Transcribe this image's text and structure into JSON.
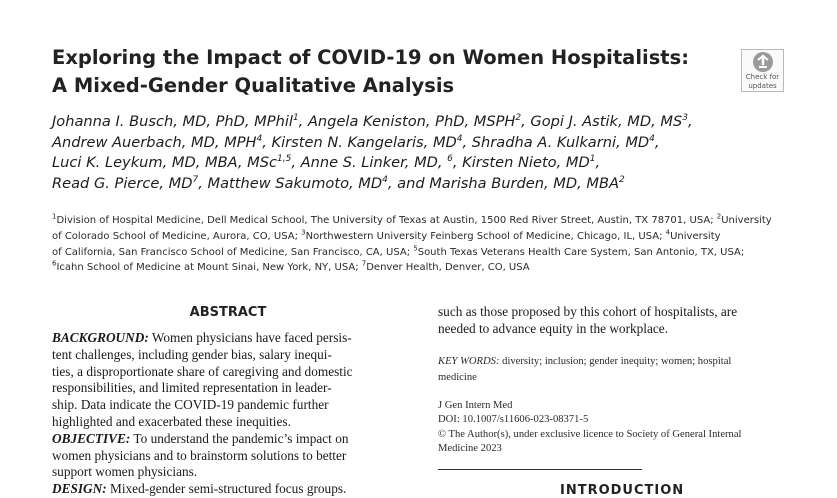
{
  "title": {
    "line1": "Exploring the Impact of COVID-19 on Women Hospitalists:",
    "line2": "A Mixed-Gender Qualitative Analysis"
  },
  "badge": {
    "line1": "Check for",
    "line2": "updates",
    "icon": "check-for-updates-icon"
  },
  "authors": {
    "line1": {
      "a1": "Johanna I. Busch, MD, PhD, MPhil",
      "s1": "1",
      "a2": ", Angela Keniston, PhD, MSPH",
      "s2": "2",
      "a3": ", Gopi J. Astik, MD, MS",
      "s3": "3",
      "a3t": ","
    },
    "line2": {
      "a1": "Andrew Auerbach, MD, MPH",
      "s1": "4",
      "a2": ", Kirsten N. Kangelaris, MD",
      "s2": "4",
      "a3": ", Shradha A. Kulkarni, MD",
      "s3": "4",
      "a3t": ","
    },
    "line3": {
      "a1": "Luci K. Leykum, MD, MBA, MSc",
      "s1": "1,5",
      "a2": ", Anne S. Linker, MD, ",
      "s2": "6",
      "a3": ", Kirsten Nieto, MD",
      "s3": "1",
      "a3t": ","
    },
    "line4": {
      "a1": "Read G. Pierce, MD",
      "s1": "7",
      "a2": ", Matthew Sakumoto, MD",
      "s2": "4",
      "a3": ", and Marisha Burden, MD, MBA",
      "s3": "2"
    }
  },
  "affiliations": {
    "l1": {
      "s1": "1",
      "t1": "Division of Hospital Medicine, Dell Medical School, The University of Texas at Austin, 1500 Red River Street, Austin, TX 78701, USA; ",
      "s2": "2",
      "t2": "University"
    },
    "l2": {
      "t1": "of Colorado School of Medicine, Aurora, CO, USA; ",
      "s2": "3",
      "t2": "Northwestern University Feinberg School of Medicine, Chicago, IL, USA; ",
      "s3": "4",
      "t3": "University"
    },
    "l3": {
      "t1": "of California, San Francisco School of Medicine, San Francisco, CA, USA; ",
      "s2": "5",
      "t2": "South Texas Veterans Health Care System, San Antonio, TX, USA;"
    },
    "l4": {
      "s1": "6",
      "t1": "Icahn School of Medicine at Mount Sinai, New York, NY, USA; ",
      "s2": "7",
      "t2": "Denver Health, Denver, CO, USA"
    }
  },
  "abstract": {
    "heading": "ABSTRACT",
    "background_label": "BACKGROUND:",
    "bg_lines": [
      " Women physicians have faced persis-",
      "tent challenges, including gender bias, salary inequi-",
      "ties, a disproportionate share of caregiving and domestic",
      "responsibilities, and limited representation in leader-",
      "ship. Data indicate the COVID-19 pandemic further",
      "highlighted and exacerbated these inequities."
    ],
    "objective_label": "OBJECTIVE:",
    "obj_lines": [
      " To understand the pandemic’s impact on",
      "women physicians and to brainstorm solutions to better",
      "support women physicians."
    ],
    "design_label": "DESIGN:",
    "design_text": " Mixed-gender semi-structured focus groups."
  },
  "right_column": {
    "cont_lines": [
      "such as those proposed by this cohort of hospitalists, are",
      "needed to advance equity in the workplace."
    ],
    "keywords_label": "KEY WORDS:",
    "keywords_line1": " diversity; inclusion; gender inequity; women; hospital",
    "keywords_line2": "medicine",
    "journal": "J Gen Intern Med",
    "doi": "DOI: 10.1007/s11606-023-08371-5",
    "copyright_line1": "© The Author(s), under exclusive licence to Society of General Internal",
    "copyright_line2": "Medicine 2023",
    "next_heading": "INTRODUCTION"
  }
}
